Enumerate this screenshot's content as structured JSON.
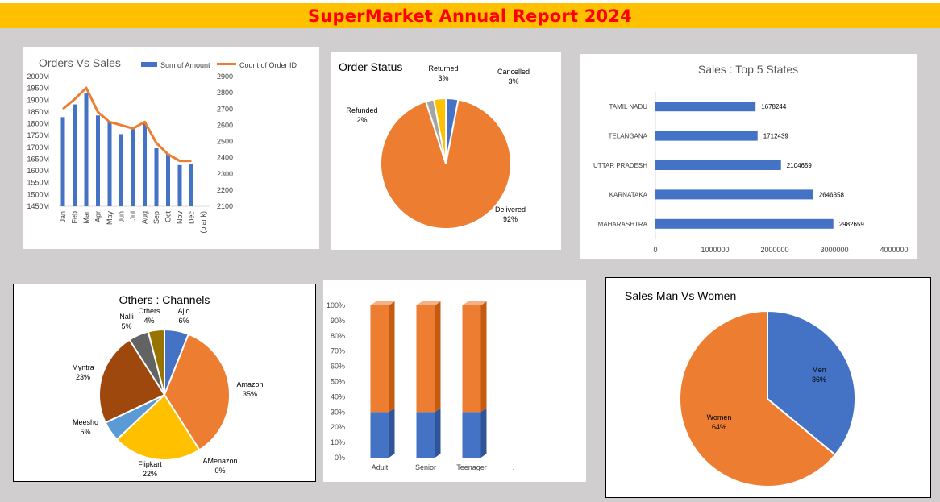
{
  "report": {
    "title": "SuperMarket Annual Report 2024"
  },
  "colors": {
    "blue": "#4472c4",
    "orange": "#ed7d31",
    "gold": "#ffc000",
    "gray": "#a5a5a5",
    "lightblue": "#5b9bd5",
    "brown": "#9e480e",
    "darkgray": "#636363",
    "olive": "#997300"
  },
  "chart_data": [
    {
      "id": "orders_vs_sales",
      "type": "bar",
      "title": "Orders Vs Sales",
      "categories": [
        "Jan",
        "Feb",
        "Mar",
        "Apr",
        "May",
        "Jun",
        "Jul",
        "Aug",
        "Sep",
        "Oct",
        "Nov",
        "Dec",
        "(blank)"
      ],
      "series": [
        {
          "name": "Sum of Amount",
          "type": "bar",
          "axis": "left",
          "values": [
            1828,
            1882,
            1928,
            1835,
            1806,
            1756,
            1780,
            1806,
            1696,
            1673,
            1625,
            1630,
            null
          ]
        },
        {
          "name": "Count of Order ID",
          "type": "line",
          "axis": "right",
          "values": [
            2700,
            2760,
            2830,
            2680,
            2620,
            2600,
            2580,
            2620,
            2490,
            2420,
            2380,
            2380,
            null
          ]
        }
      ],
      "left_axis": {
        "ticks": [
          "2000M",
          "1950M",
          "1900M",
          "1850M",
          "1800M",
          "1750M",
          "1700M",
          "1650M",
          "1600M",
          "1550M",
          "1500M",
          "1450M"
        ],
        "ylim": [
          1450,
          2000
        ]
      },
      "right_axis": {
        "ticks": [
          "2900",
          "2800",
          "2700",
          "2600",
          "2500",
          "2400",
          "2300",
          "2200",
          "2100"
        ],
        "ylim": [
          2100,
          2900
        ]
      },
      "legend": "top"
    },
    {
      "id": "order_status",
      "type": "pie",
      "title": "Order Status",
      "slices": [
        {
          "label": "Delivered",
          "pct_label": "92%",
          "value": 92
        },
        {
          "label": "Refunded",
          "pct_label": "2%",
          "value": 2
        },
        {
          "label": "Returned",
          "pct_label": "3%",
          "value": 3
        },
        {
          "label": "Cancelled",
          "pct_label": "3%",
          "value": 3
        }
      ]
    },
    {
      "id": "top_states",
      "type": "bar",
      "orientation": "horizontal",
      "title": "Sales : Top 5 States",
      "categories": [
        "TAMIL NADU",
        "TELANGANA",
        "UTTAR PRADESH",
        "KARNATAKA",
        "MAHARASHTRA"
      ],
      "values": [
        1678244,
        1712439,
        2104659,
        2646358,
        2982659
      ],
      "value_labels": [
        "1678244",
        "1712439",
        "2104659",
        "2646358",
        "2982659"
      ],
      "xlim": [
        0,
        4000000
      ],
      "x_ticks": [
        "0",
        "1000000",
        "2000000",
        "3000000",
        "4000000"
      ]
    },
    {
      "id": "channels",
      "type": "pie",
      "title": "Others : Channels",
      "slices": [
        {
          "label": "Ajio",
          "pct_label": "6%",
          "value": 6
        },
        {
          "label": "Amazon",
          "pct_label": "35%",
          "value": 35
        },
        {
          "label": "AMenazon",
          "pct_label": "0%",
          "value": 0
        },
        {
          "label": "Flipkart",
          "pct_label": "22%",
          "value": 22
        },
        {
          "label": "Meesho",
          "pct_label": "5%",
          "value": 5
        },
        {
          "label": "Myntra",
          "pct_label": "23%",
          "value": 23
        },
        {
          "label": "Nalli",
          "pct_label": "5%",
          "value": 5
        },
        {
          "label": "Others",
          "pct_label": "4%",
          "value": 4
        }
      ]
    },
    {
      "id": "age_groups",
      "type": "bar",
      "stacked": true,
      "title": "",
      "categories": [
        "Adult",
        "Senior",
        "Teenager",
        "."
      ],
      "series": [
        {
          "name": "",
          "values": [
            30,
            30,
            30,
            null
          ]
        },
        {
          "name": "",
          "values": [
            70,
            70,
            70,
            null
          ]
        }
      ],
      "y_ticks": [
        "100%",
        "90%",
        "80%",
        "70%",
        "60%",
        "50%",
        "40%",
        "30%",
        "20%",
        "10%",
        "0%"
      ],
      "ylim": [
        0,
        100
      ]
    },
    {
      "id": "gender",
      "type": "pie",
      "title": "Sales Man Vs Women",
      "slices": [
        {
          "label": "Men",
          "pct_label": "36%",
          "value": 36
        },
        {
          "label": "Women",
          "pct_label": "64%",
          "value": 64
        }
      ]
    }
  ]
}
